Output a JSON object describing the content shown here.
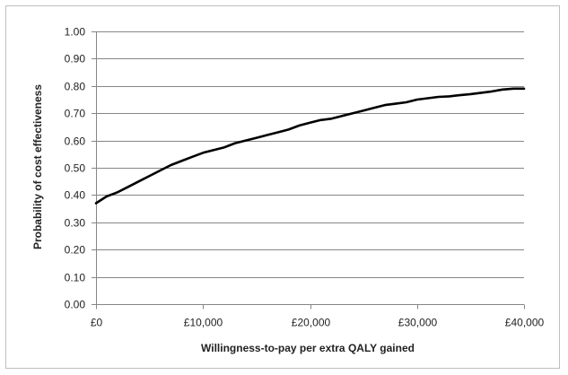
{
  "chart_data": {
    "type": "line",
    "title": "",
    "xlabel": "Willingness-to-pay per extra QALY gained",
    "ylabel": "Probability of cost effectiveness",
    "xlim": [
      0,
      40000
    ],
    "ylim": [
      0,
      1
    ],
    "grid": true,
    "legend": "none",
    "x_ticks": [
      {
        "value": 0,
        "label": "£0"
      },
      {
        "value": 10000,
        "label": "£10,000"
      },
      {
        "value": 20000,
        "label": "£20,000"
      },
      {
        "value": 30000,
        "label": "£30,000"
      },
      {
        "value": 40000,
        "label": "£40,000"
      }
    ],
    "y_ticks": [
      {
        "value": 0.0,
        "label": "0.00"
      },
      {
        "value": 0.1,
        "label": "0.10"
      },
      {
        "value": 0.2,
        "label": "0.20"
      },
      {
        "value": 0.3,
        "label": "0.30"
      },
      {
        "value": 0.4,
        "label": "0.40"
      },
      {
        "value": 0.5,
        "label": "0.50"
      },
      {
        "value": 0.6,
        "label": "0.60"
      },
      {
        "value": 0.7,
        "label": "0.70"
      },
      {
        "value": 0.8,
        "label": "0.80"
      },
      {
        "value": 0.9,
        "label": "0.90"
      },
      {
        "value": 1.0,
        "label": "1.00"
      }
    ],
    "series": [
      {
        "color": "#000000",
        "x": [
          0,
          1000,
          2000,
          3000,
          4000,
          5000,
          6000,
          7000,
          8000,
          9000,
          10000,
          11000,
          12000,
          13000,
          14000,
          15000,
          16000,
          17000,
          18000,
          19000,
          20000,
          21000,
          22000,
          23000,
          24000,
          25000,
          26000,
          27000,
          28000,
          29000,
          30000,
          31000,
          32000,
          33000,
          34000,
          35000,
          36000,
          37000,
          38000,
          39000,
          40000
        ],
        "y": [
          0.37,
          0.395,
          0.41,
          0.43,
          0.45,
          0.47,
          0.49,
          0.51,
          0.525,
          0.54,
          0.555,
          0.565,
          0.575,
          0.59,
          0.6,
          0.61,
          0.62,
          0.63,
          0.64,
          0.655,
          0.665,
          0.675,
          0.68,
          0.69,
          0.7,
          0.71,
          0.72,
          0.73,
          0.735,
          0.74,
          0.75,
          0.755,
          0.76,
          0.762,
          0.766,
          0.77,
          0.775,
          0.78,
          0.787,
          0.79,
          0.79
        ]
      }
    ]
  }
}
